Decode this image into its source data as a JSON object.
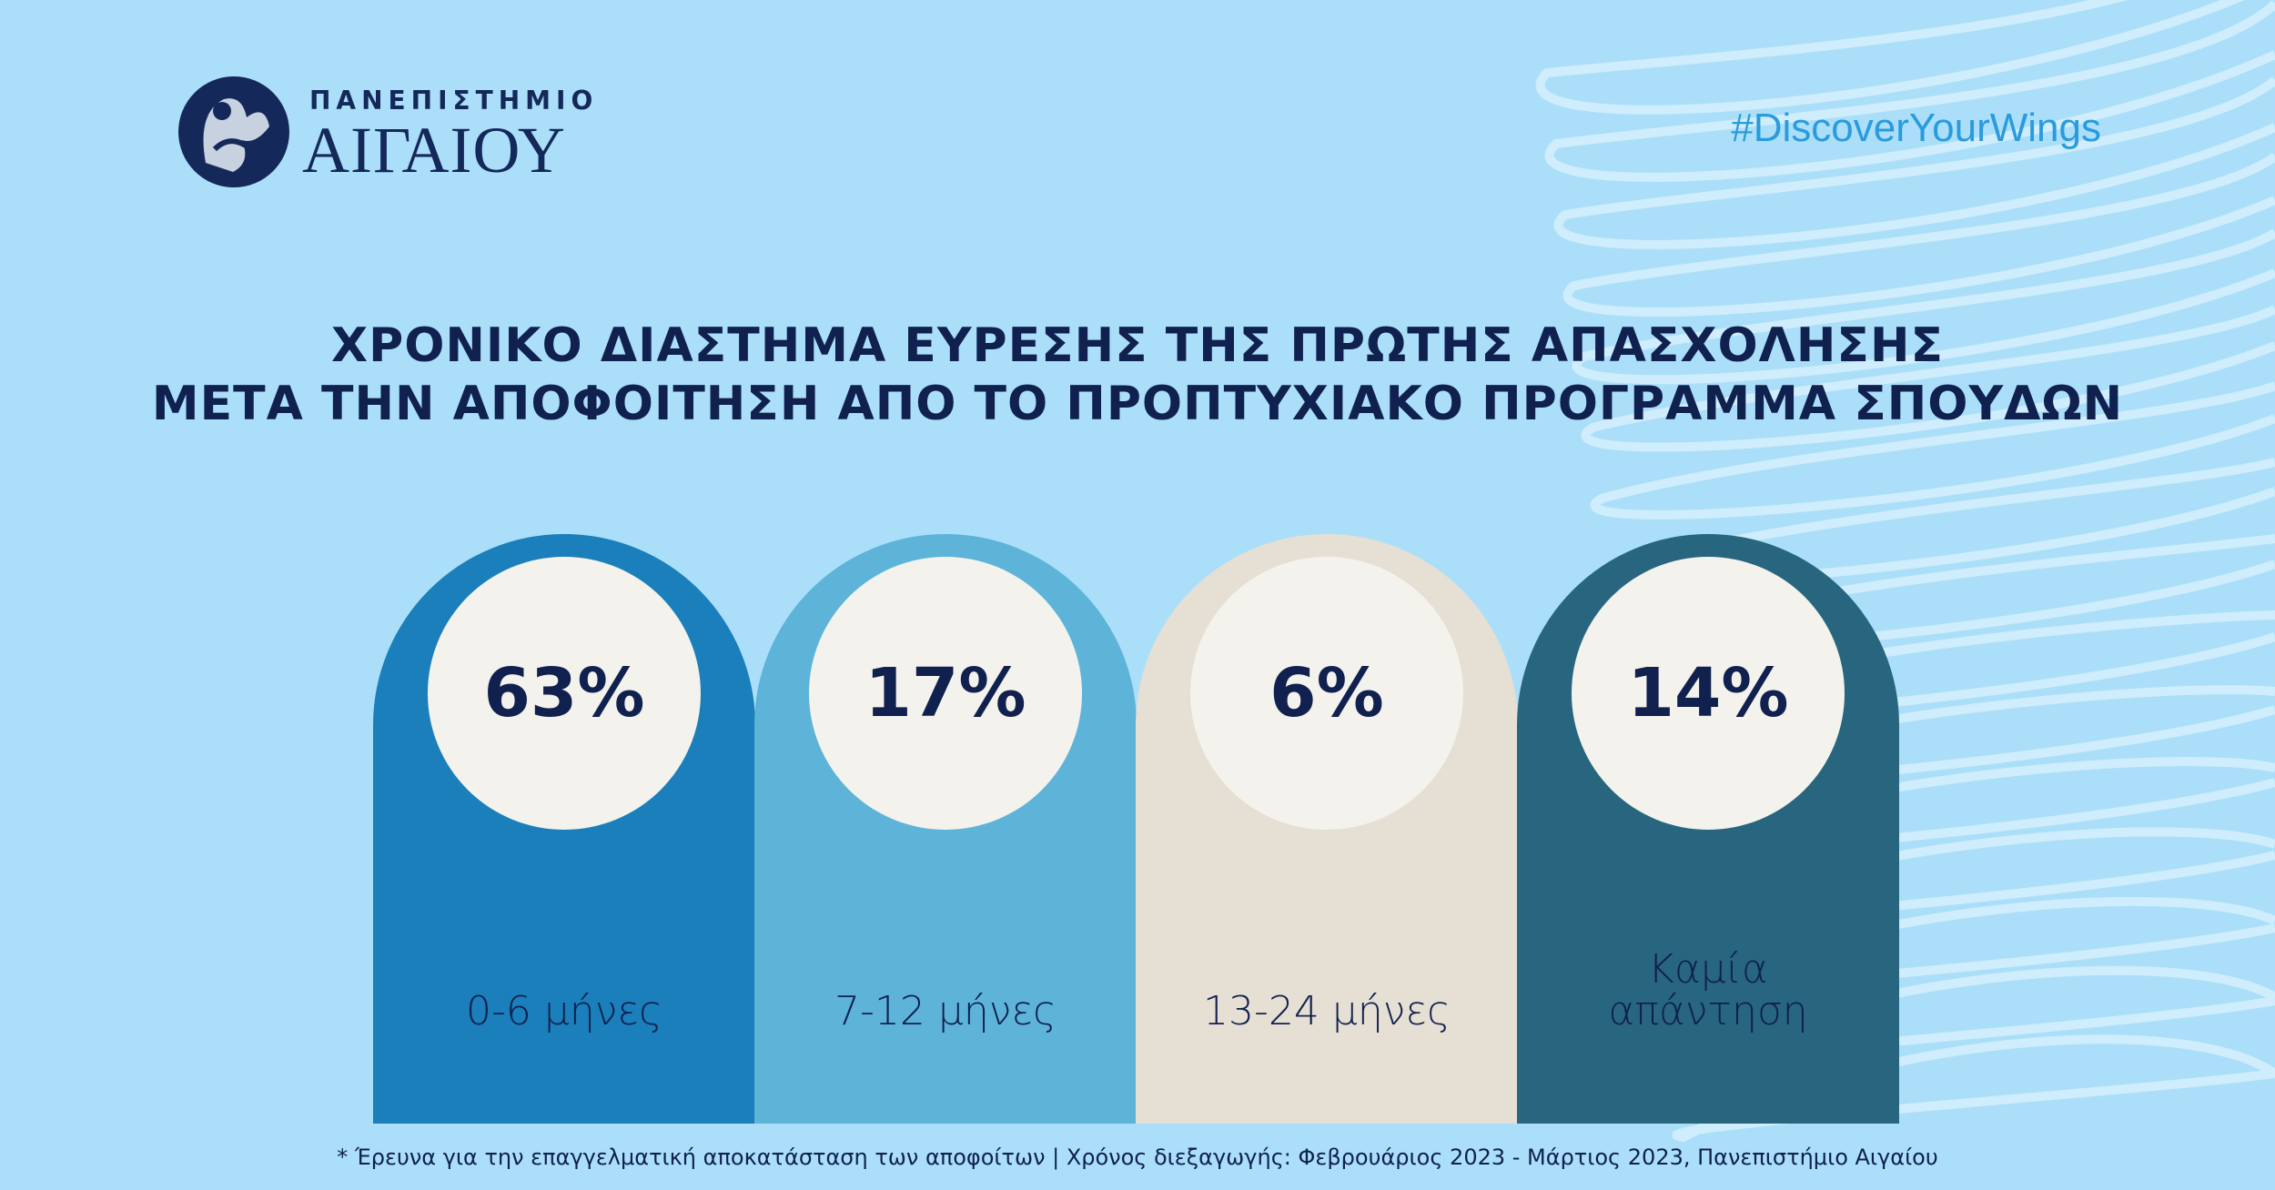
{
  "logo": {
    "line1": "ΠΑΝΕΠΙΣΤΗΜΙΟ",
    "line2": "ΑΙΓΑΙΟΥ"
  },
  "hashtag": "#DiscoverYourWings",
  "chart_data": {
    "type": "bar",
    "title": [
      "ΧΡΟΝΙΚΟ ΔΙΑΣΤΗΜΑ ΕΥΡΕΣΗΣ ΤΗΣ ΠΡΩΤΗΣ ΑΠΑΣΧΟΛΗΣΗΣ",
      "ΜΕΤΑ ΤΗΝ ΑΠΟΦΟΙΤΗΣΗ ΑΠΟ ΤΟ ΠΡΟΠΤΥΧΙΑΚΟ ΠΡΟΓΡΑΜΜΑ ΣΠΟΥΔΩΝ"
    ],
    "categories": [
      "0-6 μήνες",
      "7-12 μήνες",
      "13-24 μήνες",
      "Καμία απάντηση"
    ],
    "values": [
      63,
      17,
      6,
      14
    ],
    "value_labels": [
      "63%",
      "17%",
      "6%",
      "14%"
    ],
    "colors": [
      "#1a7fba",
      "#5db4d8",
      "#e6dfd3",
      "#27667e"
    ]
  },
  "footnote": "* Έρευνα για την επαγγελματική αποκατάσταση των αποφοίτων | Χρόνος διεξαγωγής: Φεβρουάριος 2023 - Μάρτιος 2023, Πανεπιστήμιο Αιγαίου"
}
